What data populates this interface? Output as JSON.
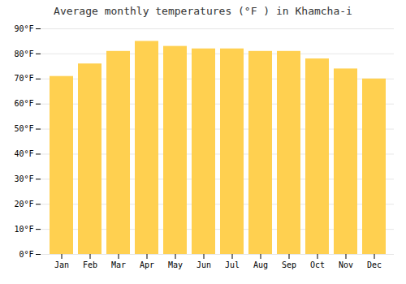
{
  "chart_data": {
    "type": "bar",
    "title": "Average monthly temperatures (°F ) in Khamcha-i",
    "categories": [
      "Jan",
      "Feb",
      "Mar",
      "Apr",
      "May",
      "Jun",
      "Jul",
      "Aug",
      "Sep",
      "Oct",
      "Nov",
      "Dec"
    ],
    "values": [
      71,
      76,
      81,
      85,
      83,
      82,
      82,
      81,
      81,
      78,
      74,
      70
    ],
    "color": "#FFD050",
    "ylim": [
      0,
      90
    ],
    "yticks": [
      {
        "value": 0,
        "label": "0°F"
      },
      {
        "value": 10,
        "label": "10°F"
      },
      {
        "value": 20,
        "label": "20°F"
      },
      {
        "value": 30,
        "label": "30°F"
      },
      {
        "value": 40,
        "label": "40°F"
      },
      {
        "value": 50,
        "label": "50°F"
      },
      {
        "value": 60,
        "label": "60°F"
      },
      {
        "value": 70,
        "label": "70°F"
      },
      {
        "value": 80,
        "label": "80°F"
      },
      {
        "value": 90,
        "label": "90°F"
      }
    ],
    "grid": true
  }
}
